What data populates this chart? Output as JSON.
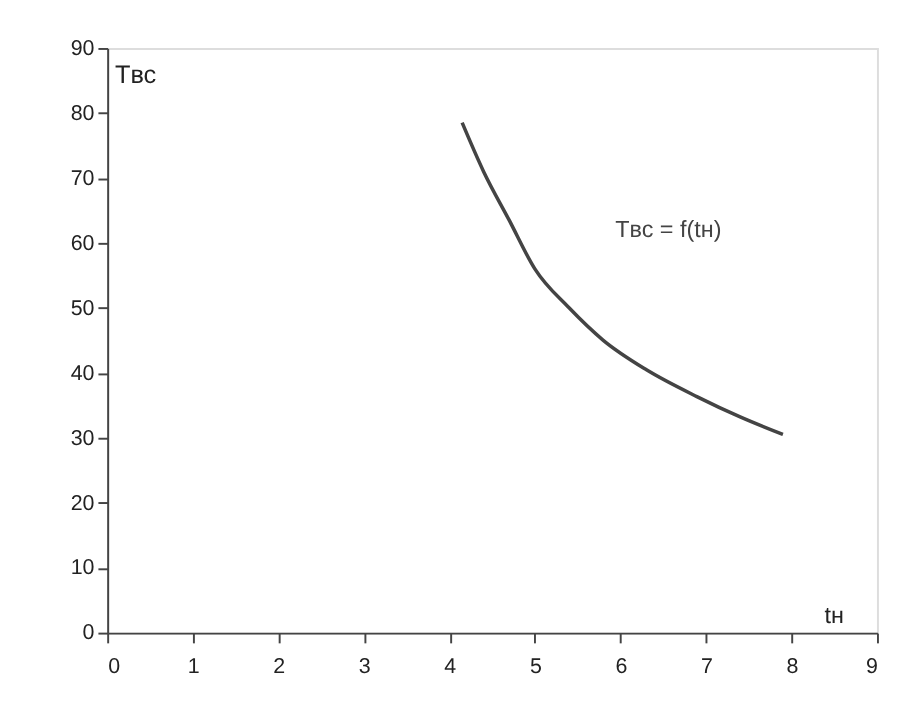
{
  "chart_data": {
    "type": "line",
    "xlabel": "tн",
    "ylabel": "Tвс",
    "x": [
      4.15,
      4.4,
      4.7,
      5.0,
      5.4,
      5.8,
      6.3,
      6.9,
      7.4,
      7.9
    ],
    "series": [
      {
        "color": "#444444",
        "values": [
          78.5,
          71,
          63.5,
          56,
          50,
          45,
          40.5,
          36.3,
          33.2,
          30.5
        ]
      }
    ],
    "xlim": [
      0,
      9
    ],
    "xticks": [
      0,
      1,
      2,
      3,
      4,
      5,
      6,
      7,
      8,
      9
    ],
    "ylim": [
      0,
      90
    ],
    "yticks": [
      0,
      10,
      20,
      30,
      40,
      50,
      60,
      70,
      80,
      90
    ],
    "annotations": [
      "Tвс = f(tн)"
    ],
    "grid": false,
    "marker": "none",
    "line_style": "solid"
  }
}
